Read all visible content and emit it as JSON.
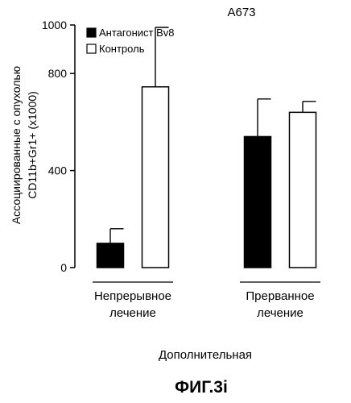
{
  "chart_data": {
    "type": "bar",
    "title": "A673",
    "ylabel_lines": [
      "Ассоциированные с опухолью",
      "CD11b+Gr1+ (x1000)"
    ],
    "xlabel": "Дополнительная",
    "figure_label": "ФИГ.3i",
    "ylim": [
      0,
      1000
    ],
    "yticks": [
      "0",
      "400",
      "800",
      "1000"
    ],
    "ytick_values": [
      0,
      400,
      800,
      1000
    ],
    "grid": false,
    "legend_position": "top-left",
    "categories": [
      {
        "lines": [
          "Непрерывное",
          "лечение"
        ]
      },
      {
        "lines": [
          "Прерванное",
          "лечение"
        ]
      }
    ],
    "series": [
      {
        "name": "Антагонист Bv8",
        "color": "#000000",
        "fill": "solid",
        "values": [
          100,
          540
        ],
        "errors": [
          60,
          155
        ]
      },
      {
        "name": "Контроль",
        "color": "#ffffff",
        "fill": "open",
        "values": [
          745,
          640
        ],
        "errors": [
          245,
          45
        ]
      }
    ]
  }
}
